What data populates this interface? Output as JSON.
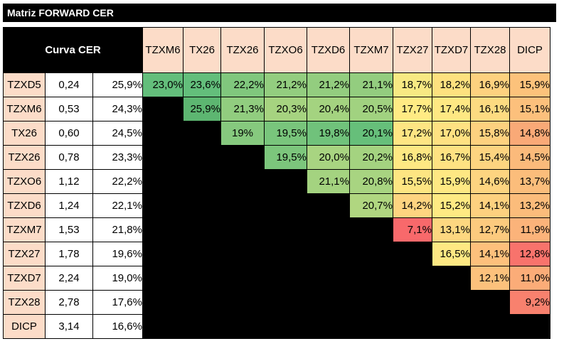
{
  "title": "Matriz FORWARD CER",
  "header_label": "Curva CER",
  "columns": [
    "TZXM6",
    "TX26",
    "TZX26",
    "TZXO6",
    "TZXD6",
    "TZXM7",
    "TZX27",
    "TZXD7",
    "TZX28",
    "DICP"
  ],
  "rows": [
    {
      "name": "TZXD5",
      "duration": "0,24",
      "rate": "25,9%",
      "values": [
        "23,0%",
        "23,6%",
        "22,2%",
        "21,2%",
        "21,2%",
        "21,1%",
        "18,7%",
        "18,2%",
        "16,9%",
        "15,9%"
      ],
      "colors": [
        "#63be7b",
        "#63be7b",
        "#80c77d",
        "#93cd7f",
        "#93cd7f",
        "#93cd7f",
        "#f7e983",
        "#fde17f",
        "#fdd17f",
        "#fcc27b"
      ]
    },
    {
      "name": "TZXM6",
      "duration": "0,53",
      "rate": "24,3%",
      "values": [
        "",
        "25,9%",
        "21,3%",
        "20,3%",
        "20,4%",
        "20,5%",
        "17,7%",
        "17,4%",
        "16,1%",
        "15,1%"
      ],
      "colors": [
        "",
        "#5db671",
        "#91cd7f",
        "#a6d380",
        "#a4d380",
        "#a1d280",
        "#ffeb84",
        "#fee883",
        "#fddb81",
        "#fcc07c"
      ]
    },
    {
      "name": "TX26",
      "duration": "0,60",
      "rate": "24,5%",
      "values": [
        "",
        "",
        "19%",
        "19,5%",
        "19,8%",
        "20,1%",
        "17,2%",
        "17,0%",
        "15,8%",
        "14,8%"
      ],
      "colors": [
        "",
        "",
        "#86c97e",
        "#79c57c",
        "#70c27b",
        "#66bf7a",
        "#fee583",
        "#fee182",
        "#fdd17f",
        "#f9a977"
      ]
    },
    {
      "name": "TZX26",
      "duration": "0,78",
      "rate": "23,3%",
      "values": [
        "",
        "",
        "",
        "19,5%",
        "20,0%",
        "20,2%",
        "16,8%",
        "16,7%",
        "15,4%",
        "14,5%"
      ],
      "colors": [
        "",
        "",
        "",
        "#7cc67c",
        "#a8d481",
        "#a4d380",
        "#fee883",
        "#fee282",
        "#fdd480",
        "#fbba7b"
      ]
    },
    {
      "name": "TZXO6",
      "duration": "1,12",
      "rate": "22,2%",
      "values": [
        "",
        "",
        "",
        "",
        "21,1%",
        "20,8%",
        "15,5%",
        "15,9%",
        "14,6%",
        "13,7%"
      ],
      "colors": [
        "",
        "",
        "",
        "",
        "#a4d380",
        "#a8d481",
        "#fde582",
        "#fee883",
        "#fdd480",
        "#fbbd7b"
      ]
    },
    {
      "name": "TZXD6",
      "duration": "1,24",
      "rate": "22,1%",
      "values": [
        "",
        "",
        "",
        "",
        "",
        "20,7%",
        "14,2%",
        "15,2%",
        "14,1%",
        "13,2%"
      ],
      "colors": [
        "",
        "",
        "",
        "",
        "",
        "#b0d680",
        "#fed480",
        "#feea83",
        "#fdd17f",
        "#fbbc7b"
      ]
    },
    {
      "name": "TZXM7",
      "duration": "1,53",
      "rate": "21,8%",
      "values": [
        "",
        "",
        "",
        "",
        "",
        "",
        "7,1%",
        "13,1%",
        "12,7%",
        "11,9%"
      ],
      "colors": [
        "",
        "",
        "",
        "",
        "",
        "",
        "#f8696b",
        "#fdd780",
        "#fcca7e",
        "#fbb37a"
      ]
    },
    {
      "name": "TZX27",
      "duration": "1,78",
      "rate": "19,6%",
      "values": [
        "",
        "",
        "",
        "",
        "",
        "",
        "",
        "16,5%",
        "14,1%",
        "12,8%"
      ],
      "colors": [
        "",
        "",
        "",
        "",
        "",
        "",
        "",
        "#fee883",
        "#fdc07c",
        "#f8736c"
      ]
    },
    {
      "name": "TZXD7",
      "duration": "2,24",
      "rate": "19,0%",
      "values": [
        "",
        "",
        "",
        "",
        "",
        "",
        "",
        "",
        "12,1%",
        "11,0%"
      ],
      "colors": [
        "",
        "",
        "",
        "",
        "",
        "",
        "",
        "",
        "#fcc17c",
        "#fbac78"
      ]
    },
    {
      "name": "TZX28",
      "duration": "2,78",
      "rate": "17,6%",
      "values": [
        "",
        "",
        "",
        "",
        "",
        "",
        "",
        "",
        "",
        "9,2%"
      ],
      "colors": [
        "",
        "",
        "",
        "",
        "",
        "",
        "",
        "",
        "",
        "#f8816e"
      ]
    },
    {
      "name": "DICP",
      "duration": "3,14",
      "rate": "16,6%",
      "values": [
        "",
        "",
        "",
        "",
        "",
        "",
        "",
        "",
        "",
        ""
      ],
      "colors": [
        "",
        "",
        "",
        "",
        "",
        "",
        "",
        "",
        "",
        ""
      ]
    }
  ]
}
